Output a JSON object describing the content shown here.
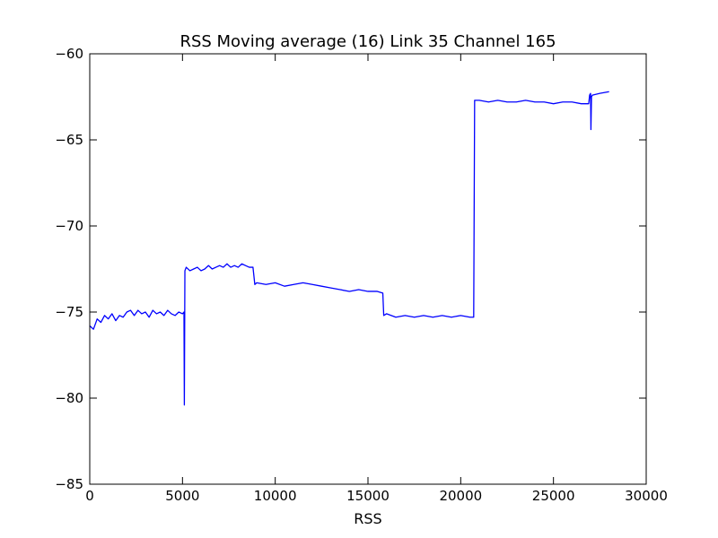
{
  "chart_data": {
    "type": "line",
    "title": "RSS Moving average (16) Link 35 Channel 165",
    "xlabel": "RSS",
    "ylabel": "",
    "xlim": [
      0,
      30000
    ],
    "ylim": [
      -85,
      -60
    ],
    "x_ticks": [
      0,
      5000,
      10000,
      15000,
      20000,
      25000,
      30000
    ],
    "x_tick_labels": [
      "0",
      "5000",
      "10000",
      "15000",
      "20000",
      "25000",
      "30000"
    ],
    "y_ticks": [
      -85,
      -80,
      -75,
      -70,
      -65,
      -60
    ],
    "y_tick_labels": [
      "−85",
      "−80",
      "−75",
      "−70",
      "−65",
      "−60"
    ],
    "grid": false,
    "legend": "none",
    "series": [
      {
        "color": "#0000ff",
        "x": [
          0,
          200,
          400,
          600,
          800,
          1000,
          1200,
          1400,
          1600,
          1800,
          2000,
          2200,
          2400,
          2600,
          2800,
          3000,
          3200,
          3400,
          3600,
          3800,
          4000,
          4200,
          4400,
          4600,
          4800,
          5000,
          5080,
          5100,
          5130,
          5200,
          5400,
          5600,
          5800,
          6000,
          6200,
          6400,
          6600,
          6800,
          7000,
          7200,
          7400,
          7600,
          7800,
          8000,
          8200,
          8400,
          8600,
          8800,
          8900,
          9000,
          9500,
          10000,
          10500,
          11000,
          11500,
          12000,
          12500,
          13000,
          13500,
          14000,
          14500,
          15000,
          15500,
          15800,
          15850,
          16000,
          16500,
          17000,
          17500,
          18000,
          18500,
          19000,
          19500,
          20000,
          20500,
          20700,
          20750,
          21000,
          21500,
          22000,
          22500,
          23000,
          23500,
          24000,
          24500,
          25000,
          25500,
          26000,
          26500,
          26900,
          26950,
          27000,
          27020,
          27050,
          27100,
          27500,
          28000
        ],
        "y": [
          -75.8,
          -76.0,
          -75.4,
          -75.6,
          -75.2,
          -75.4,
          -75.1,
          -75.5,
          -75.2,
          -75.3,
          -75.0,
          -74.9,
          -75.2,
          -74.9,
          -75.1,
          -75.0,
          -75.3,
          -74.9,
          -75.1,
          -75.0,
          -75.2,
          -74.9,
          -75.1,
          -75.2,
          -75.0,
          -75.1,
          -75.0,
          -80.4,
          -72.6,
          -72.4,
          -72.6,
          -72.5,
          -72.4,
          -72.6,
          -72.5,
          -72.3,
          -72.5,
          -72.4,
          -72.3,
          -72.4,
          -72.2,
          -72.4,
          -72.3,
          -72.4,
          -72.2,
          -72.3,
          -72.4,
          -72.4,
          -73.4,
          -73.3,
          -73.4,
          -73.3,
          -73.5,
          -73.4,
          -73.3,
          -73.4,
          -73.5,
          -73.6,
          -73.7,
          -73.8,
          -73.7,
          -73.8,
          -73.8,
          -73.9,
          -75.2,
          -75.1,
          -75.3,
          -75.2,
          -75.3,
          -75.2,
          -75.3,
          -75.2,
          -75.3,
          -75.2,
          -75.3,
          -75.3,
          -62.7,
          -62.7,
          -62.8,
          -62.7,
          -62.8,
          -62.8,
          -62.7,
          -62.8,
          -62.8,
          -62.9,
          -62.8,
          -62.8,
          -62.9,
          -62.9,
          -62.4,
          -62.3,
          -64.4,
          -62.5,
          -62.4,
          -62.3,
          -62.2
        ]
      }
    ]
  }
}
